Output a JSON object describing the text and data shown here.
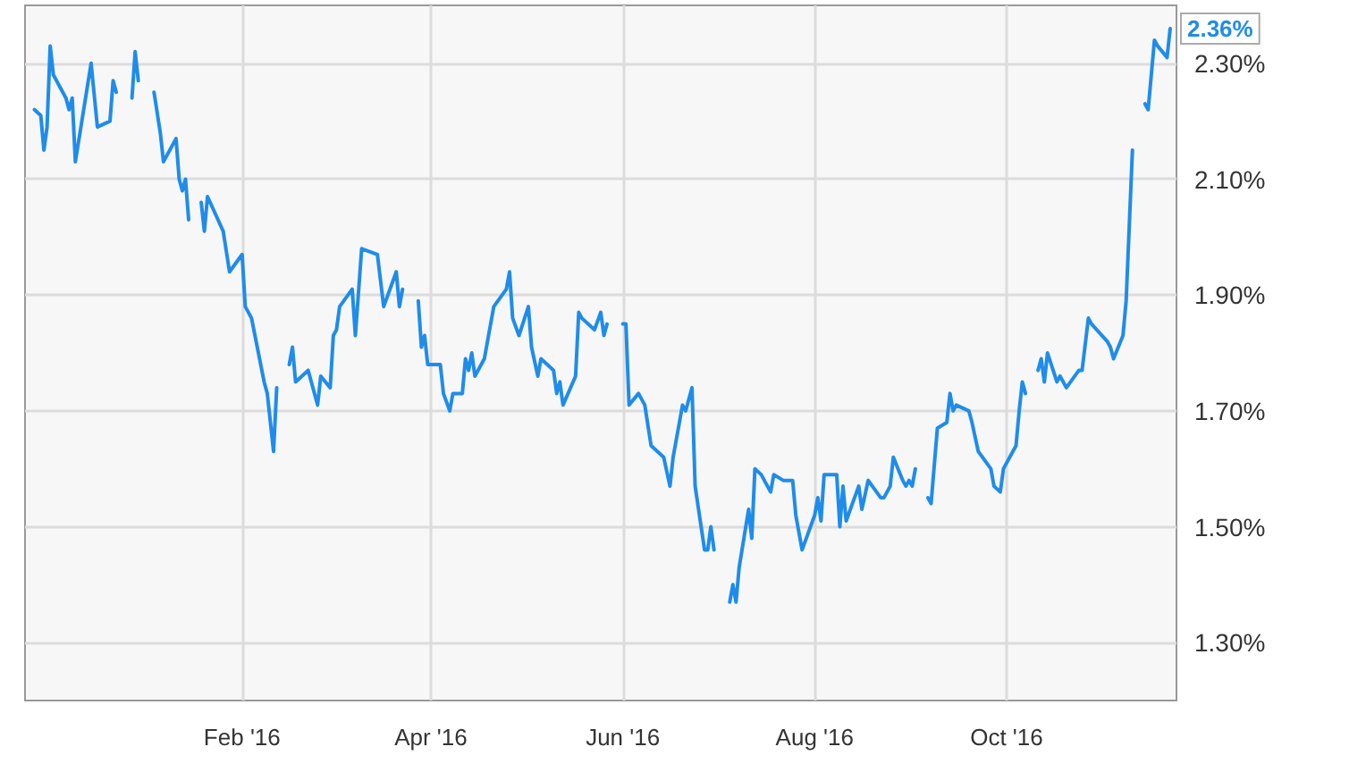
{
  "chart_data": {
    "type": "line",
    "color": "#1f8ceb",
    "grid": true,
    "marker": "none",
    "line_style": "solid",
    "x": [
      "2015-11-27",
      "2015-11-29",
      "2015-11-30",
      "2015-12-01",
      "2015-12-02",
      "2015-12-03",
      "2015-12-07",
      "2015-12-08",
      "2015-12-09",
      "2015-12-10",
      "2015-12-15",
      "2015-12-17",
      "2015-12-21",
      "2015-12-22",
      "2015-12-23",
      "2015-12-24",
      "2015-12-28",
      "2015-12-29",
      "2015-12-30",
      "2015-12-31",
      "2016-01-04",
      "2016-01-06",
      "2016-01-07",
      "2016-01-11",
      "2016-01-12",
      "2016-01-13",
      "2016-01-14",
      "2016-01-15",
      "2016-01-18",
      "2016-01-19",
      "2016-01-20",
      "2016-01-21",
      "2016-01-26",
      "2016-01-28",
      "2016-02-01",
      "2016-02-02",
      "2016-02-04",
      "2016-02-08",
      "2016-02-09",
      "2016-02-11",
      "2016-02-12",
      "2016-02-15",
      "2016-02-16",
      "2016-02-17",
      "2016-02-18",
      "2016-02-22",
      "2016-02-25",
      "2016-02-26",
      "2016-02-29",
      "2016-03-01",
      "2016-03-02",
      "2016-03-03",
      "2016-03-07",
      "2016-03-08",
      "2016-03-10",
      "2016-03-15",
      "2016-03-17",
      "2016-03-21",
      "2016-03-22",
      "2016-03-23",
      "2016-03-25",
      "2016-03-28",
      "2016-03-29",
      "2016-03-30",
      "2016-03-31",
      "2016-04-04",
      "2016-04-05",
      "2016-04-07",
      "2016-04-08",
      "2016-04-11",
      "2016-04-12",
      "2016-04-13",
      "2016-04-14",
      "2016-04-15",
      "2016-04-18",
      "2016-04-21",
      "2016-04-25",
      "2016-04-26",
      "2016-04-27",
      "2016-04-29",
      "2016-05-02",
      "2016-05-03",
      "2016-05-05",
      "2016-05-06",
      "2016-05-10",
      "2016-05-11",
      "2016-05-12",
      "2016-05-13",
      "2016-05-17",
      "2016-05-18",
      "2016-05-19",
      "2016-05-23",
      "2016-05-25",
      "2016-05-26",
      "2016-05-27",
      "2016-05-30",
      "2016-06-01",
      "2016-06-02",
      "2016-06-03",
      "2016-06-06",
      "2016-06-08",
      "2016-06-10",
      "2016-06-14",
      "2016-06-16",
      "2016-06-17",
      "2016-06-20",
      "2016-06-21",
      "2016-06-23",
      "2016-06-24",
      "2016-06-27",
      "2016-06-28",
      "2016-06-29",
      "2016-06-30",
      "2016-07-04",
      "2016-07-05",
      "2016-07-06",
      "2016-07-07",
      "2016-07-08",
      "2016-07-11",
      "2016-07-12",
      "2016-07-13",
      "2016-07-15",
      "2016-07-18",
      "2016-07-19",
      "2016-07-22",
      "2016-07-25",
      "2016-07-26",
      "2016-07-28",
      "2016-08-01",
      "2016-08-02",
      "2016-08-03",
      "2016-08-04",
      "2016-08-08",
      "2016-08-09",
      "2016-08-10",
      "2016-08-11",
      "2016-08-15",
      "2016-08-16",
      "2016-08-18",
      "2016-08-22",
      "2016-08-23",
      "2016-08-25",
      "2016-08-26",
      "2016-08-29",
      "2016-08-30",
      "2016-08-31",
      "2016-09-01",
      "2016-09-02",
      "2016-09-05",
      "2016-09-06",
      "2016-09-07",
      "2016-09-09",
      "2016-09-12",
      "2016-09-13",
      "2016-09-14",
      "2016-09-15",
      "2016-09-19",
      "2016-09-20",
      "2016-09-22",
      "2016-09-26",
      "2016-09-27",
      "2016-09-29",
      "2016-09-30",
      "2016-10-03",
      "2016-10-04",
      "2016-10-05",
      "2016-10-06",
      "2016-10-07",
      "2016-10-10",
      "2016-10-11",
      "2016-10-12",
      "2016-10-13",
      "2016-10-14",
      "2016-10-17",
      "2016-10-18",
      "2016-10-20",
      "2016-10-24",
      "2016-10-25",
      "2016-10-27",
      "2016-10-28",
      "2016-11-02",
      "2016-11-03",
      "2016-11-04",
      "2016-11-07",
      "2016-11-08",
      "2016-11-10",
      "2016-11-11",
      "2016-11-14",
      "2016-11-15",
      "2016-11-17",
      "2016-11-18",
      "2016-11-21",
      "2016-11-22"
    ],
    "values": [
      2.22,
      2.21,
      2.15,
      2.19,
      2.33,
      2.28,
      2.24,
      2.22,
      2.24,
      2.13,
      2.3,
      2.19,
      2.2,
      2.27,
      2.25,
      null,
      2.24,
      2.32,
      2.27,
      null,
      2.25,
      2.18,
      2.13,
      2.17,
      2.1,
      2.08,
      2.1,
      2.03,
      null,
      2.06,
      2.01,
      2.07,
      2.01,
      1.94,
      1.97,
      1.88,
      1.86,
      1.75,
      1.73,
      1.63,
      1.74,
      null,
      1.78,
      1.81,
      1.75,
      1.77,
      1.71,
      1.76,
      1.74,
      1.83,
      1.84,
      1.88,
      1.91,
      1.83,
      1.98,
      1.97,
      1.88,
      1.94,
      1.88,
      1.91,
      null,
      1.89,
      1.81,
      1.83,
      1.78,
      1.78,
      1.73,
      1.7,
      1.73,
      1.73,
      1.79,
      1.77,
      1.8,
      1.76,
      1.79,
      1.88,
      1.91,
      1.94,
      1.86,
      1.83,
      1.88,
      1.81,
      1.76,
      1.79,
      1.77,
      1.73,
      1.75,
      1.71,
      1.76,
      1.87,
      1.86,
      1.84,
      1.87,
      1.83,
      1.85,
      null,
      1.85,
      1.85,
      1.71,
      1.73,
      1.71,
      1.64,
      1.62,
      1.57,
      1.62,
      1.71,
      1.7,
      1.74,
      1.57,
      1.46,
      1.46,
      1.5,
      1.46,
      null,
      1.37,
      1.4,
      1.37,
      1.43,
      1.53,
      1.48,
      1.6,
      1.59,
      1.56,
      1.59,
      1.58,
      1.58,
      1.52,
      1.46,
      1.52,
      1.55,
      1.51,
      1.59,
      1.59,
      1.5,
      1.57,
      1.51,
      1.57,
      1.53,
      1.58,
      1.55,
      1.55,
      1.57,
      1.62,
      1.58,
      1.57,
      1.58,
      1.57,
      1.6,
      null,
      1.55,
      1.54,
      1.67,
      1.68,
      1.73,
      1.7,
      1.71,
      1.7,
      1.68,
      1.63,
      1.6,
      1.57,
      1.56,
      1.6,
      1.63,
      1.64,
      1.7,
      1.75,
      1.73,
      null,
      1.77,
      1.79,
      1.75,
      1.8,
      1.75,
      1.76,
      1.74,
      1.77,
      1.77,
      1.86,
      1.85,
      1.82,
      1.81,
      1.79,
      1.83,
      1.89,
      2.15,
      null,
      2.23,
      2.22,
      2.34,
      2.33,
      2.31,
      2.36
    ],
    "xlim": [
      "2015-11-24",
      "2016-11-24"
    ],
    "xticks": [
      {
        "value": "2016-02-01",
        "label": "Feb '16"
      },
      {
        "value": "2016-04-01",
        "label": "Apr '16"
      },
      {
        "value": "2016-06-01",
        "label": "Jun '16"
      },
      {
        "value": "2016-08-01",
        "label": "Aug '16"
      },
      {
        "value": "2016-10-01",
        "label": "Oct '16"
      }
    ],
    "ylim": [
      1.2,
      2.4
    ],
    "yticks": [
      {
        "value": 1.3,
        "label": "1.30%"
      },
      {
        "value": 1.5,
        "label": "1.50%"
      },
      {
        "value": 1.7,
        "label": "1.70%"
      },
      {
        "value": 1.9,
        "label": "1.90%"
      },
      {
        "value": 2.1,
        "label": "2.10%"
      },
      {
        "value": 2.3,
        "label": "2.30%"
      }
    ],
    "annotations": [
      {
        "text": "2.36%",
        "x": "2016-11-22",
        "y": 2.36
      }
    ]
  }
}
